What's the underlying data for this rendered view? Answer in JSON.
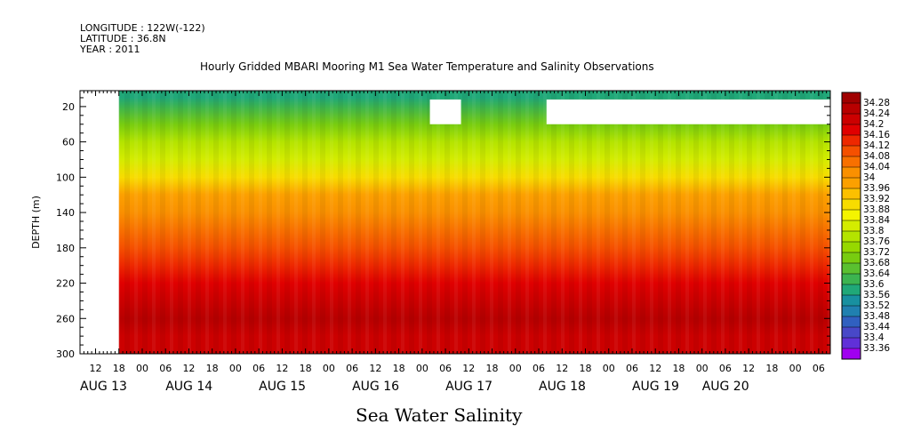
{
  "header": {
    "longitude": "LONGITUDE : 122W(-122)",
    "latitude": "LATITUDE : 36.8N",
    "year": "YEAR : 2011"
  },
  "chart_data": {
    "type": "heatmap",
    "title": "Hourly Gridded MBARI Mooring M1 Sea Water Temperature and Salinity Observations",
    "xlabel": "Sea Water Salinity",
    "ylabel": "DEPTH (m)",
    "x_range_hours_since_aug13_00": [
      8,
      201
    ],
    "data_start_hour": 18,
    "ylim": [
      300,
      2
    ],
    "yticks": [
      20,
      60,
      100,
      140,
      180,
      220,
      260,
      300
    ],
    "hour_ticks": [
      {
        "h": 12,
        "label": "12"
      },
      {
        "h": 18,
        "label": "18"
      },
      {
        "h": 24,
        "label": "00"
      },
      {
        "h": 30,
        "label": "06"
      },
      {
        "h": 36,
        "label": "12"
      },
      {
        "h": 42,
        "label": "18"
      },
      {
        "h": 48,
        "label": "00"
      },
      {
        "h": 54,
        "label": "06"
      },
      {
        "h": 60,
        "label": "12"
      },
      {
        "h": 66,
        "label": "18"
      },
      {
        "h": 72,
        "label": "00"
      },
      {
        "h": 78,
        "label": "06"
      },
      {
        "h": 84,
        "label": "12"
      },
      {
        "h": 90,
        "label": "18"
      },
      {
        "h": 96,
        "label": "00"
      },
      {
        "h": 102,
        "label": "06"
      },
      {
        "h": 108,
        "label": "12"
      },
      {
        "h": 114,
        "label": "18"
      },
      {
        "h": 120,
        "label": "00"
      },
      {
        "h": 126,
        "label": "06"
      },
      {
        "h": 132,
        "label": "12"
      },
      {
        "h": 138,
        "label": "18"
      },
      {
        "h": 144,
        "label": "00"
      },
      {
        "h": 150,
        "label": "06"
      },
      {
        "h": 156,
        "label": "12"
      },
      {
        "h": 162,
        "label": "18"
      },
      {
        "h": 168,
        "label": "00"
      },
      {
        "h": 174,
        "label": "06"
      },
      {
        "h": 180,
        "label": "12"
      },
      {
        "h": 186,
        "label": "18"
      },
      {
        "h": 192,
        "label": "00"
      },
      {
        "h": 198,
        "label": "06"
      }
    ],
    "date_labels": [
      {
        "h": 8,
        "label": "AUG 13"
      },
      {
        "h": 30,
        "label": "AUG 14"
      },
      {
        "h": 54,
        "label": "AUG 15"
      },
      {
        "h": 78,
        "label": "AUG 16"
      },
      {
        "h": 102,
        "label": "AUG 17"
      },
      {
        "h": 126,
        "label": "AUG 18"
      },
      {
        "h": 150,
        "label": "AUG 19"
      },
      {
        "h": 168,
        "label": "AUG 20"
      }
    ],
    "missing_data_boxes": [
      {
        "h_start": 98,
        "h_end": 106,
        "depth_top": 12,
        "depth_bottom": 40
      },
      {
        "h_start": 128,
        "h_end": 201,
        "depth_top": 12,
        "depth_bottom": 40
      }
    ],
    "depth_profile": [
      {
        "depth": 2,
        "value": 33.56
      },
      {
        "depth": 10,
        "value": 33.58
      },
      {
        "depth": 20,
        "value": 33.62
      },
      {
        "depth": 40,
        "value": 33.7
      },
      {
        "depth": 60,
        "value": 33.76
      },
      {
        "depth": 80,
        "value": 33.82
      },
      {
        "depth": 100,
        "value": 33.9
      },
      {
        "depth": 120,
        "value": 33.97
      },
      {
        "depth": 140,
        "value": 34.03
      },
      {
        "depth": 160,
        "value": 34.06
      },
      {
        "depth": 180,
        "value": 34.08
      },
      {
        "depth": 200,
        "value": 34.12
      },
      {
        "depth": 220,
        "value": 34.18
      },
      {
        "depth": 240,
        "value": 34.22
      },
      {
        "depth": 260,
        "value": 34.26
      },
      {
        "depth": 280,
        "value": 34.22
      },
      {
        "depth": 300,
        "value": 34.2
      }
    ],
    "colorbar": {
      "levels": [
        "34.28",
        "34.24",
        "34.2",
        "34.16",
        "34.12",
        "34.08",
        "34.04",
        "34",
        "33.96",
        "33.92",
        "33.88",
        "33.84",
        "33.8",
        "33.76",
        "33.72",
        "33.68",
        "33.64",
        "33.6",
        "33.56",
        "33.52",
        "33.48",
        "33.44",
        "33.4",
        "33.36"
      ],
      "colors": [
        "#a00000",
        "#b80000",
        "#cc0000",
        "#e00000",
        "#ee2800",
        "#f55000",
        "#f87000",
        "#fa9000",
        "#fca000",
        "#fcc000",
        "#f8dc00",
        "#f4f400",
        "#d4ec00",
        "#b4e400",
        "#96d800",
        "#78cc10",
        "#5ac030",
        "#3cb450",
        "#20a878",
        "#1890a0",
        "#2080b0",
        "#3060c0",
        "#4848c8",
        "#6030d8",
        "#a000f0"
      ]
    }
  }
}
